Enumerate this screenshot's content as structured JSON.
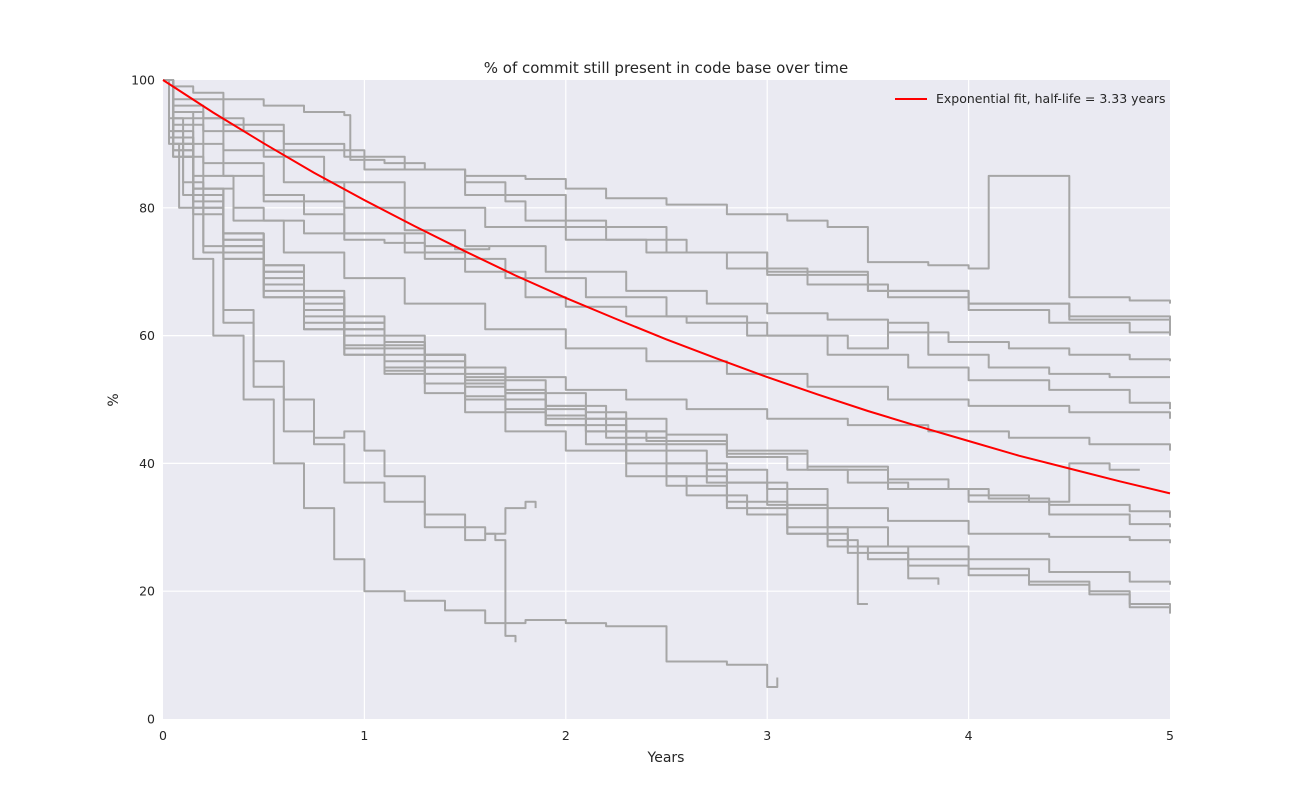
{
  "chart_data": {
    "type": "line",
    "title": "% of commit still present in code base over time",
    "xlabel": "Years",
    "ylabel": "%",
    "xlim": [
      0,
      5
    ],
    "ylim": [
      0,
      100
    ],
    "xticks": [
      "0",
      "1",
      "2",
      "3",
      "4",
      "5"
    ],
    "yticks": [
      "0",
      "20",
      "40",
      "60",
      "80",
      "100"
    ],
    "grid": true,
    "legend_position": "top-right",
    "colors": {
      "background": "#EAEAF2",
      "grid": "#FFFFFF",
      "cohort": "#A6A6A6",
      "fit": "#FF0000"
    },
    "fit": {
      "label": "Exponential fit, half-life = 3.33 years",
      "half_life_years": 3.33,
      "x": [
        0,
        0.25,
        0.5,
        0.75,
        1,
        1.25,
        1.5,
        1.75,
        2,
        2.25,
        2.5,
        2.75,
        3,
        3.25,
        3.5,
        3.75,
        4,
        4.25,
        4.5,
        4.75,
        5
      ],
      "y": [
        100,
        94.9,
        90.1,
        85.5,
        81.2,
        77.1,
        73.2,
        69.4,
        65.9,
        62.6,
        59.4,
        56.4,
        53.5,
        50.8,
        48.2,
        45.8,
        43.5,
        41.2,
        39.2,
        37.2,
        35.3
      ]
    },
    "series": [
      {
        "x": [
          0,
          0.05,
          0.15,
          0.3,
          0.5,
          0.7,
          0.9,
          0.93,
          1.1,
          1.3,
          1.5,
          1.8,
          2,
          2.2,
          2.5,
          2.8,
          3.1,
          3.3,
          3.5,
          3.8,
          4,
          4.1,
          4.5,
          4.8,
          5
        ],
        "y": [
          100,
          99,
          98,
          97,
          96,
          95,
          94.5,
          87.5,
          87,
          86,
          85,
          84.5,
          83,
          81.5,
          80.5,
          79,
          78,
          77,
          71.5,
          71,
          70.5,
          85,
          66,
          65.5,
          65
        ]
      },
      {
        "x": [
          0,
          0.05,
          0.2,
          0.4,
          0.6,
          0.9,
          1.2,
          1.5,
          1.7,
          1.8,
          2.2,
          2.6,
          3,
          3.5,
          4,
          4.5,
          5
        ],
        "y": [
          100,
          96,
          94,
          92,
          90,
          88,
          86,
          84,
          81,
          78,
          75,
          73,
          70,
          67,
          65,
          63,
          60.5
        ]
      },
      {
        "x": [
          0,
          0.05,
          0.3,
          0.6,
          1,
          1.5,
          2,
          2.5,
          3,
          3.5,
          4,
          4.5,
          5
        ],
        "y": [
          100,
          97,
          93,
          89,
          86,
          82,
          77,
          73,
          69.5,
          67,
          65,
          62.5,
          60
        ]
      },
      {
        "x": [
          0,
          0.05,
          0.2,
          0.5,
          0.8,
          1.2,
          1.6,
          2,
          2.4,
          2.8,
          3.2,
          3.6,
          4,
          4.4,
          4.8,
          5
        ],
        "y": [
          100,
          95,
          92,
          88,
          84,
          80,
          77,
          75,
          73,
          70.5,
          68,
          66,
          64,
          62,
          60.5,
          60
        ]
      },
      {
        "x": [
          0,
          0.05,
          0.3,
          0.6,
          0.9,
          1.2,
          1.5,
          1.9,
          2.3,
          2.7,
          3,
          3.3,
          3.6,
          3.9,
          4.2,
          4.5,
          4.8,
          5
        ],
        "y": [
          100,
          94,
          89,
          84,
          80,
          76.5,
          74,
          70,
          67,
          65,
          63.5,
          62.5,
          60.5,
          59,
          58,
          57,
          56.3,
          56
        ]
      },
      {
        "x": [
          0,
          0.05,
          0.15,
          0.3,
          0.5,
          0.7,
          0.9,
          1.2,
          1.5,
          1.8,
          2,
          2.3,
          2.6,
          3,
          3.4,
          3.6,
          3.8,
          4.1,
          4.4,
          4.7,
          5
        ],
        "y": [
          100,
          95,
          90,
          85,
          82,
          79,
          76,
          73,
          70,
          66,
          64.5,
          63,
          62,
          60,
          58,
          62,
          57,
          55,
          54,
          53.5,
          53.5
        ]
      },
      {
        "x": [
          0,
          0.05,
          0.2,
          0.5,
          0.9,
          1.3,
          1.7,
          2.1,
          2.5,
          2.9,
          3.3,
          3.7,
          4,
          4.4,
          4.8,
          5
        ],
        "y": [
          100,
          93,
          87,
          81,
          76,
          72,
          69,
          66,
          63,
          60,
          57,
          55,
          53,
          51.5,
          49.5,
          48.5
        ]
      },
      {
        "x": [
          0,
          0.05,
          0.15,
          0.35,
          0.6,
          0.9,
          1.2,
          1.6,
          2,
          2.4,
          2.8,
          3.2,
          3.6,
          4,
          4.5,
          5
        ],
        "y": [
          100,
          92,
          85,
          78,
          73,
          69,
          65,
          61,
          58,
          56,
          54,
          52,
          50,
          49,
          48,
          47
        ]
      },
      {
        "x": [
          0,
          0.05,
          0.15,
          0.3,
          0.5,
          0.7,
          0.9,
          1.1,
          1.3,
          1.5,
          1.7,
          2,
          2.3,
          2.6,
          3,
          3.4,
          3.8,
          4.2,
          4.6,
          5
        ],
        "y": [
          100,
          91,
          83,
          76,
          71,
          66,
          62,
          59,
          57,
          55,
          53.5,
          51.5,
          50,
          48.5,
          47,
          46,
          45,
          44,
          43,
          42
        ]
      },
      {
        "x": [
          0,
          0.05,
          0.15,
          0.3,
          0.5,
          0.7,
          0.9,
          1.1,
          1.3,
          1.5,
          1.7,
          1.9,
          2.1,
          2.4,
          2.8,
          3.2,
          3.6,
          3.9,
          4.1,
          4.4,
          4.8,
          5
        ],
        "y": [
          100,
          90,
          82,
          74,
          68,
          63,
          58,
          55,
          52.5,
          50,
          48,
          46,
          45,
          43.5,
          41.5,
          39.5,
          37.5,
          36,
          34.5,
          33.5,
          32.5,
          31.5
        ]
      },
      {
        "x": [
          0,
          0.05,
          0.15,
          0.3,
          0.5,
          0.7,
          0.9,
          1.1,
          1.3,
          1.5,
          1.7,
          1.9,
          2.2,
          2.5,
          2.8,
          3.2,
          3.6,
          4,
          4.4,
          4.8,
          5
        ],
        "y": [
          100,
          90,
          83,
          76,
          69,
          64,
          60,
          57,
          55,
          53,
          51,
          49,
          47,
          44.5,
          42,
          39,
          36,
          34,
          32,
          30.5,
          30
        ]
      },
      {
        "x": [
          0,
          0.05,
          0.15,
          0.3,
          0.5,
          0.7,
          0.9,
          1.1,
          1.3,
          1.5,
          1.7,
          1.9,
          2.1,
          2.3,
          2.5,
          2.7,
          3,
          3.3,
          3.6,
          4,
          4.4,
          4.8,
          5
        ],
        "y": [
          100,
          90,
          82,
          75,
          70,
          66,
          62,
          59,
          57,
          55,
          53,
          51,
          48,
          45,
          42,
          39,
          36,
          33,
          31,
          29,
          28.5,
          28,
          27.5
        ]
      },
      {
        "x": [
          0,
          0.05,
          0.15,
          0.3,
          0.5,
          0.7,
          0.9,
          1.1,
          1.3,
          1.5,
          1.7,
          1.9,
          2.1,
          2.3,
          2.5,
          2.7,
          3,
          3.3,
          3.6,
          4,
          4.4,
          4.8,
          5
        ],
        "y": [
          100,
          89,
          81,
          74,
          68,
          64,
          61,
          58.5,
          56,
          53.5,
          51,
          48.5,
          46,
          43,
          40,
          37,
          33.5,
          30,
          27,
          25,
          23,
          21.5,
          21
        ]
      },
      {
        "x": [
          0,
          0.05,
          0.15,
          0.3,
          0.5,
          0.7,
          0.9,
          1.1,
          1.3,
          1.5,
          1.7,
          1.9,
          2.1,
          2.3,
          2.5,
          2.8,
          3.1,
          3.4,
          3.7,
          4,
          4.3,
          4.6,
          4.8,
          5
        ],
        "y": [
          100,
          88,
          80,
          73,
          67,
          62,
          58.5,
          56,
          54,
          52,
          50,
          47.5,
          45,
          42,
          38,
          34,
          30,
          27,
          25,
          23.5,
          21.5,
          20,
          18,
          16.5
        ]
      },
      {
        "x": [
          0,
          0.05,
          0.15,
          0.3,
          0.5,
          0.7,
          0.9,
          1.1,
          1.3,
          1.5,
          1.7,
          1.9,
          2.1,
          2.3,
          2.5,
          2.8,
          3.1,
          3.4,
          3.7,
          4,
          4.3,
          4.6,
          4.8,
          5
        ],
        "y": [
          100,
          88,
          79,
          72,
          66,
          61,
          57,
          54.5,
          52.5,
          50.5,
          48.5,
          46,
          43,
          40,
          36.5,
          33,
          29,
          26,
          24,
          22.5,
          21,
          19.5,
          17.5,
          17
        ]
      },
      {
        "x": [
          0,
          0.03,
          0.08,
          0.15,
          0.25,
          0.4,
          0.55,
          0.7,
          0.85,
          1,
          1.2,
          1.4,
          1.6,
          1.8,
          2,
          2.2,
          2.5,
          2.8,
          3,
          3.05
        ],
        "y": [
          100,
          90,
          80,
          72,
          60,
          50,
          40,
          33,
          25,
          20,
          18.5,
          17,
          15,
          15.5,
          15,
          14.5,
          9,
          8.5,
          5,
          6.5
        ]
      },
      {
        "x": [
          0,
          0.03,
          0.1,
          0.2,
          0.3,
          0.45,
          0.6,
          0.75,
          0.9,
          1,
          1.1,
          1.3,
          1.5,
          1.6,
          1.65,
          1.7,
          1.75
        ],
        "y": [
          100,
          91,
          82,
          73,
          62,
          52,
          45,
          44,
          45,
          42,
          38,
          30,
          28,
          29,
          28,
          13,
          12
        ]
      },
      {
        "x": [
          0,
          0.03,
          0.1,
          0.2,
          0.3,
          0.45,
          0.6,
          0.75,
          0.9,
          1.1,
          1.3,
          1.5,
          1.6,
          1.7,
          1.8,
          1.85
        ],
        "y": [
          100,
          92,
          84,
          74,
          64,
          56,
          50,
          43,
          37,
          34,
          32,
          30,
          29,
          33,
          34,
          33
        ]
      },
      {
        "x": [
          0,
          0.05,
          0.15,
          0.3,
          0.5,
          0.7,
          0.9,
          1.1,
          1.3,
          1.5,
          1.7,
          2,
          2.3,
          2.6,
          2.9,
          3.1,
          3.3,
          3.5,
          3.7,
          3.85
        ],
        "y": [
          100,
          89,
          80,
          72,
          66,
          61,
          57,
          54,
          51,
          48,
          45,
          42,
          38,
          35,
          32,
          29,
          27,
          25,
          22,
          21
        ]
      },
      {
        "x": [
          0,
          0.05,
          0.15,
          0.3,
          0.5,
          0.7,
          0.9,
          1.1,
          1.3,
          1.5,
          1.7,
          1.9,
          2.2,
          2.5,
          2.8,
          3.1,
          3.3,
          3.45,
          3.5
        ],
        "y": [
          100,
          90,
          82,
          75,
          70,
          65,
          61,
          58,
          55,
          52.5,
          50,
          47,
          44,
          40,
          37,
          33,
          28,
          18,
          18
        ]
      },
      {
        "x": [
          0,
          0.03,
          0.1,
          0.2,
          0.35,
          0.5,
          0.7,
          0.9,
          1.1,
          1.3,
          1.45,
          1.55,
          1.62
        ],
        "y": [
          100,
          94,
          88,
          83,
          80,
          78,
          76,
          75,
          74.5,
          74,
          73.5,
          73.5,
          74
        ]
      },
      {
        "x": [
          0,
          0.05,
          0.15,
          0.3,
          0.5,
          0.7,
          0.9,
          1.1,
          1.3,
          1.5,
          1.7,
          1.9,
          2.1,
          2.3,
          2.5,
          2.8,
          3.1,
          3.4,
          3.7,
          4,
          4.3,
          4.5,
          4.7,
          4.85
        ],
        "y": [
          100,
          91,
          83,
          76,
          71,
          67,
          63,
          60,
          57,
          54,
          51.5,
          49,
          47,
          45,
          43,
          41,
          39,
          37,
          36,
          35,
          34,
          40,
          39,
          39
        ]
      }
    ]
  }
}
